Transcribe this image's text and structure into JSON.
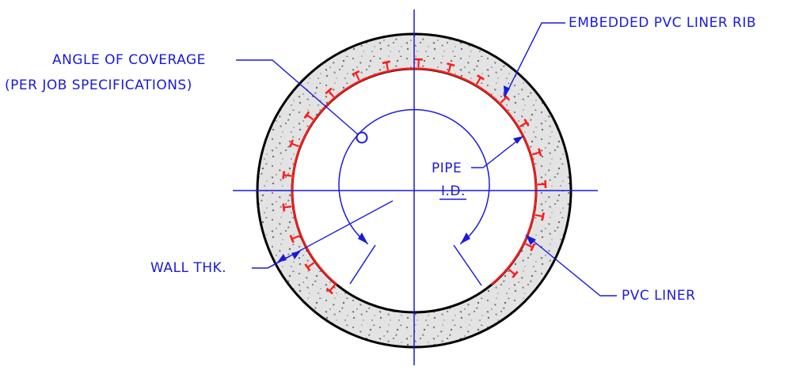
{
  "drawing": {
    "labels": {
      "angle_line1": "ANGLE OF COVERAGE",
      "angle_line2": "(PER JOB SPECIFICATIONS)",
      "rib": "EMBEDDED PVC LINER RIB",
      "pipe_line1": "PIPE",
      "pipe_line2": "I.D.",
      "wall": "WALL THK.",
      "liner": "PVC LINER"
    },
    "colors": {
      "annotation": "#1a1adc",
      "liner": "#ff1a1a",
      "concrete_fill": "#e2e2e2",
      "outline": "#000000"
    }
  }
}
